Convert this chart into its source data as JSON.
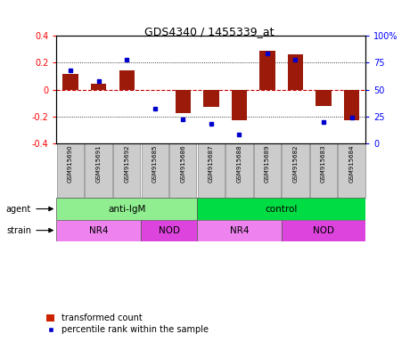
{
  "title": "GDS4340 / 1455339_at",
  "samples": [
    "GSM915690",
    "GSM915691",
    "GSM915692",
    "GSM915685",
    "GSM915686",
    "GSM915687",
    "GSM915688",
    "GSM915689",
    "GSM915682",
    "GSM915683",
    "GSM915684"
  ],
  "transformed_count": [
    0.12,
    0.045,
    0.145,
    -0.005,
    -0.175,
    -0.13,
    -0.23,
    0.29,
    0.265,
    -0.12,
    -0.225
  ],
  "percentile_rank": [
    68,
    58,
    78,
    32,
    22,
    18,
    8,
    84,
    78,
    20,
    24
  ],
  "ylim": [
    -0.4,
    0.4
  ],
  "percentile_ylim": [
    0,
    100
  ],
  "yticks_left": [
    -0.4,
    -0.2,
    0.0,
    0.2,
    0.4
  ],
  "yticks_right": [
    0,
    25,
    50,
    75,
    100
  ],
  "ytick_labels_right": [
    "0",
    "25",
    "50",
    "75",
    "100%"
  ],
  "bar_color": "#9B1A0A",
  "dot_color": "#0000CC",
  "zero_line_color": "#CC0000",
  "grid_color": "#000000",
  "agent_groups": [
    {
      "label": "anti-IgM",
      "start": 0,
      "end": 5,
      "color": "#90EE90"
    },
    {
      "label": "control",
      "start": 5,
      "end": 11,
      "color": "#00DD44"
    }
  ],
  "strain_groups": [
    {
      "label": "NR4",
      "start": 0,
      "end": 3,
      "color": "#EE82EE"
    },
    {
      "label": "NOD",
      "start": 3,
      "end": 5,
      "color": "#DD44DD"
    },
    {
      "label": "NR4",
      "start": 5,
      "end": 8,
      "color": "#EE82EE"
    },
    {
      "label": "NOD",
      "start": 8,
      "end": 11,
      "color": "#DD44DD"
    }
  ],
  "legend_bar_color": "#CC2200",
  "legend_dot_color": "#0000CC",
  "legend_labels": [
    "transformed count",
    "percentile rank within the sample"
  ],
  "tick_bg_color": "#CCCCCC",
  "agent_label": "agent",
  "strain_label": "strain"
}
